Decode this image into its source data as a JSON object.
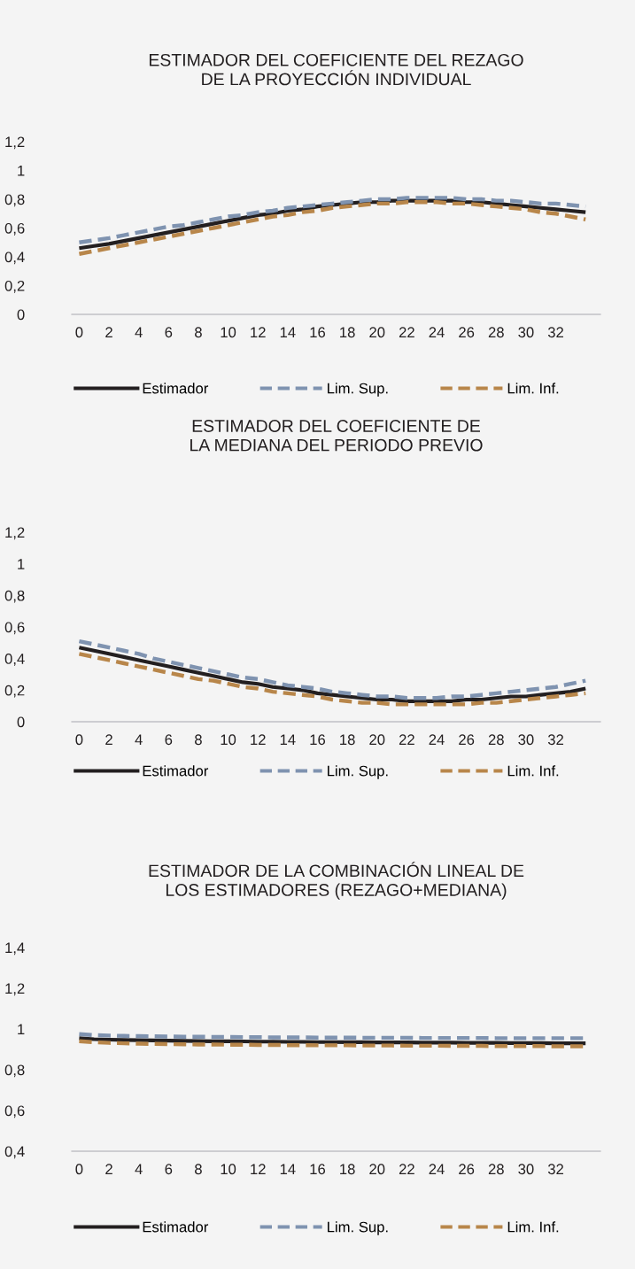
{
  "chart_data": [
    {
      "type": "line",
      "title": "ESTIMADOR DEL COEFICIENTE DEL REZAGO\nDE LA PROYECCIÓN INDIVIDUAL",
      "categories": [
        "0",
        null,
        "2",
        null,
        "4",
        null,
        "6",
        null,
        "8",
        null,
        "10",
        null,
        "12",
        null,
        "14",
        null,
        "16",
        null,
        "18",
        null,
        "20",
        null,
        "22",
        null,
        "24",
        null,
        "26",
        null,
        "28",
        null,
        "30",
        null,
        "32",
        null,
        null
      ],
      "series": [
        {
          "name": "Estimador",
          "color": "#231f20",
          "line_style": "solid",
          "values": [
            0.46,
            0.475,
            0.49,
            0.51,
            0.53,
            0.55,
            0.57,
            0.59,
            0.61,
            0.63,
            0.65,
            0.67,
            0.69,
            0.7,
            0.72,
            0.73,
            0.75,
            0.76,
            0.77,
            0.78,
            0.78,
            0.79,
            0.79,
            0.79,
            0.79,
            0.79,
            0.78,
            0.78,
            0.77,
            0.76,
            0.75,
            0.74,
            0.73,
            0.72,
            0.71
          ]
        },
        {
          "name": "Lim. Sup.",
          "color": "#7f93b0",
          "line_style": "dashed",
          "values": [
            0.5,
            0.515,
            0.53,
            0.55,
            0.57,
            0.59,
            0.61,
            0.62,
            0.64,
            0.66,
            0.68,
            0.69,
            0.71,
            0.72,
            0.74,
            0.75,
            0.76,
            0.77,
            0.78,
            0.79,
            0.8,
            0.8,
            0.81,
            0.81,
            0.81,
            0.81,
            0.8,
            0.8,
            0.79,
            0.79,
            0.78,
            0.77,
            0.77,
            0.76,
            0.75
          ]
        },
        {
          "name": "Lim. Inf.",
          "color": "#b8864a",
          "line_style": "dashed",
          "values": [
            0.42,
            0.44,
            0.46,
            0.48,
            0.5,
            0.52,
            0.54,
            0.56,
            0.58,
            0.6,
            0.62,
            0.64,
            0.66,
            0.68,
            0.69,
            0.71,
            0.72,
            0.74,
            0.75,
            0.76,
            0.77,
            0.77,
            0.78,
            0.78,
            0.78,
            0.77,
            0.77,
            0.76,
            0.75,
            0.74,
            0.73,
            0.71,
            0.7,
            0.68,
            0.66
          ]
        }
      ],
      "ylim": [
        0,
        1.2
      ],
      "yticks": [
        {
          "value": 0,
          "label": "0"
        },
        {
          "value": 0.2,
          "label": "0,2"
        },
        {
          "value": 0.4,
          "label": "0,4"
        },
        {
          "value": 0.6,
          "label": "0,6"
        },
        {
          "value": 0.8,
          "label": "0,8"
        },
        {
          "value": 1,
          "label": "1"
        },
        {
          "value": 1.2,
          "label": "1,2"
        }
      ],
      "grid": false,
      "legend": "bottom"
    },
    {
      "type": "line",
      "title": "ESTIMADOR DEL COEFICIENTE DE\nLA MEDIANA DEL PERIODO PREVIO",
      "categories": [
        "0",
        null,
        "2",
        null,
        "4",
        null,
        "6",
        null,
        "8",
        null,
        "10",
        null,
        "12",
        null,
        "14",
        null,
        "16",
        null,
        "18",
        null,
        "20",
        null,
        "22",
        null,
        "24",
        null,
        "26",
        null,
        "28",
        null,
        "30",
        null,
        "32",
        null,
        null
      ],
      "series": [
        {
          "name": "Estimador",
          "color": "#231f20",
          "line_style": "solid",
          "values": [
            0.47,
            0.45,
            0.43,
            0.41,
            0.39,
            0.37,
            0.35,
            0.33,
            0.31,
            0.29,
            0.27,
            0.25,
            0.24,
            0.22,
            0.21,
            0.2,
            0.18,
            0.17,
            0.16,
            0.15,
            0.14,
            0.14,
            0.13,
            0.13,
            0.13,
            0.13,
            0.14,
            0.14,
            0.15,
            0.16,
            0.16,
            0.17,
            0.18,
            0.19,
            0.21
          ]
        },
        {
          "name": "Lim. Sup.",
          "color": "#7f93b0",
          "line_style": "dashed",
          "values": [
            0.51,
            0.49,
            0.47,
            0.45,
            0.43,
            0.4,
            0.38,
            0.36,
            0.34,
            0.32,
            0.3,
            0.28,
            0.27,
            0.25,
            0.23,
            0.22,
            0.21,
            0.19,
            0.18,
            0.17,
            0.16,
            0.16,
            0.15,
            0.15,
            0.15,
            0.16,
            0.16,
            0.17,
            0.18,
            0.19,
            0.2,
            0.21,
            0.22,
            0.24,
            0.26
          ]
        },
        {
          "name": "Lim. Inf.",
          "color": "#b8864a",
          "line_style": "dashed",
          "values": [
            0.43,
            0.41,
            0.39,
            0.37,
            0.35,
            0.33,
            0.31,
            0.29,
            0.27,
            0.26,
            0.24,
            0.22,
            0.21,
            0.19,
            0.18,
            0.17,
            0.16,
            0.14,
            0.13,
            0.12,
            0.12,
            0.11,
            0.11,
            0.11,
            0.11,
            0.11,
            0.11,
            0.12,
            0.12,
            0.13,
            0.14,
            0.15,
            0.16,
            0.17,
            0.18
          ]
        }
      ],
      "ylim": [
        0,
        1.2
      ],
      "yticks": [
        {
          "value": 0,
          "label": "0"
        },
        {
          "value": 0.2,
          "label": "0,2"
        },
        {
          "value": 0.4,
          "label": "0,4"
        },
        {
          "value": 0.6,
          "label": "0,6"
        },
        {
          "value": 0.8,
          "label": "0,8"
        },
        {
          "value": 1,
          "label": "1"
        },
        {
          "value": 1.2,
          "label": "1,2"
        }
      ],
      "grid": false,
      "legend": "bottom"
    },
    {
      "type": "line",
      "title": "ESTIMADOR DE LA COMBINACIÓN LINEAL DE\nLOS ESTIMADORES (REZAGO+MEDIANA)",
      "categories": [
        "0",
        null,
        "2",
        null,
        "4",
        null,
        "6",
        null,
        "8",
        null,
        "10",
        null,
        "12",
        null,
        "14",
        null,
        "16",
        null,
        "18",
        null,
        "20",
        null,
        "22",
        null,
        "24",
        null,
        "26",
        null,
        "28",
        null,
        "30",
        null,
        "32",
        null,
        null
      ],
      "series": [
        {
          "name": "Estimador",
          "color": "#231f20",
          "line_style": "solid",
          "values": [
            0.955,
            0.95,
            0.948,
            0.946,
            0.945,
            0.944,
            0.943,
            0.942,
            0.941,
            0.94,
            0.94,
            0.939,
            0.938,
            0.938,
            0.937,
            0.937,
            0.936,
            0.936,
            0.935,
            0.935,
            0.934,
            0.934,
            0.934,
            0.933,
            0.933,
            0.933,
            0.932,
            0.932,
            0.932,
            0.931,
            0.931,
            0.931,
            0.93,
            0.93,
            0.93
          ]
        },
        {
          "name": "Lim. Sup.",
          "color": "#7f93b0",
          "line_style": "dashed",
          "values": [
            0.975,
            0.97,
            0.968,
            0.966,
            0.965,
            0.964,
            0.963,
            0.962,
            0.962,
            0.961,
            0.961,
            0.96,
            0.96,
            0.959,
            0.959,
            0.959,
            0.958,
            0.958,
            0.958,
            0.957,
            0.957,
            0.957,
            0.957,
            0.956,
            0.956,
            0.956,
            0.956,
            0.956,
            0.955,
            0.955,
            0.955,
            0.955,
            0.955,
            0.955,
            0.955
          ]
        },
        {
          "name": "Lim. Inf.",
          "color": "#b8864a",
          "line_style": "dashed",
          "values": [
            0.94,
            0.935,
            0.932,
            0.93,
            0.928,
            0.927,
            0.926,
            0.925,
            0.924,
            0.924,
            0.923,
            0.923,
            0.922,
            0.922,
            0.921,
            0.921,
            0.92,
            0.92,
            0.92,
            0.919,
            0.919,
            0.919,
            0.918,
            0.918,
            0.918,
            0.917,
            0.917,
            0.917,
            0.916,
            0.916,
            0.916,
            0.916,
            0.915,
            0.915,
            0.915
          ]
        }
      ],
      "ylim": [
        0.4,
        1.4
      ],
      "yticks": [
        {
          "value": 0.4,
          "label": "0,4"
        },
        {
          "value": 0.6,
          "label": "0,6"
        },
        {
          "value": 0.8,
          "label": "0,8"
        },
        {
          "value": 1,
          "label": "1"
        },
        {
          "value": 1.2,
          "label": "1,2"
        },
        {
          "value": 1.4,
          "label": "1,4"
        }
      ],
      "grid": false,
      "legend": "bottom"
    }
  ]
}
